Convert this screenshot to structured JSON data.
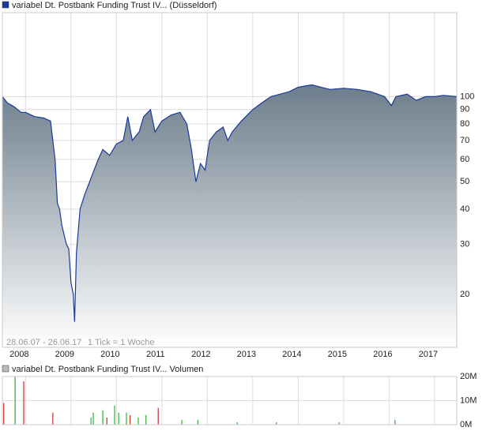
{
  "chart_data": [
    {
      "type": "line",
      "title": "variabel Dt. Postbank Funding Trust IV... (Düsseldorf)",
      "date_range": "28.06.07 - 26.06.17",
      "tick_note": "1 Tick = 1 Woche",
      "log_scale": true,
      "grid": true,
      "color": "#1a3a9a",
      "fill_color": "#6c7d8b",
      "xlim": [
        2007.49,
        2017.49
      ],
      "xticks": [
        2008,
        2009,
        2010,
        2011,
        2012,
        2013,
        2014,
        2015,
        2016,
        2017
      ],
      "ylim": [
        13,
        198
      ],
      "yticks": [
        20,
        30,
        40,
        50,
        60,
        70,
        80,
        90,
        100
      ],
      "x": [
        2007.49,
        2007.6,
        2007.75,
        2007.9,
        2008.0,
        2008.2,
        2008.4,
        2008.55,
        2008.65,
        2008.7,
        2008.75,
        2008.8,
        2008.9,
        2008.95,
        2009.0,
        2009.05,
        2009.08,
        2009.12,
        2009.2,
        2009.3,
        2009.45,
        2009.6,
        2009.7,
        2009.85,
        2010.0,
        2010.15,
        2010.25,
        2010.35,
        2010.5,
        2010.6,
        2010.75,
        2010.85,
        2011.0,
        2011.2,
        2011.4,
        2011.55,
        2011.65,
        2011.75,
        2011.85,
        2011.95,
        2012.05,
        2012.2,
        2012.35,
        2012.45,
        2012.55,
        2012.75,
        2013.0,
        2013.2,
        2013.4,
        2013.6,
        2013.8,
        2014.0,
        2014.3,
        2014.5,
        2014.7,
        2015.0,
        2015.3,
        2015.6,
        2015.9,
        2016.05,
        2016.15,
        2016.4,
        2016.6,
        2016.8,
        2017.0,
        2017.2,
        2017.49
      ],
      "values": [
        100,
        95,
        92,
        88,
        88,
        85,
        84,
        82,
        60,
        42,
        40,
        35,
        30,
        29,
        22,
        20,
        16,
        28,
        40,
        45,
        52,
        60,
        65,
        62,
        68,
        70,
        85,
        70,
        75,
        85,
        90,
        75,
        82,
        86,
        88,
        80,
        65,
        50,
        58,
        55,
        70,
        75,
        78,
        70,
        75,
        82,
        90,
        95,
        100,
        102,
        104,
        108,
        110,
        108,
        106,
        107,
        106,
        104,
        100,
        93,
        100,
        102,
        97,
        100,
        100,
        101,
        100
      ]
    },
    {
      "type": "volume",
      "title": "variabel Dt. Postbank Funding Trust IV... Volumen",
      "grid": true,
      "xlim": [
        2007.49,
        2017.49
      ],
      "xticks": [
        2008,
        2009,
        2010,
        2011,
        2012,
        2013,
        2014,
        2015,
        2016,
        2017
      ],
      "ylim": [
        0,
        20000000
      ],
      "yticks": [
        {
          "value": 0,
          "label": "0M"
        },
        {
          "value": 10000000,
          "label": "10M"
        },
        {
          "value": 20000000,
          "label": "20M"
        }
      ],
      "x": [
        2007.52,
        2007.77,
        2007.96,
        2008.6,
        2009.44,
        2009.49,
        2009.7,
        2009.79,
        2009.96,
        2010.05,
        2010.22,
        2010.3,
        2010.48,
        2010.65,
        2010.92,
        2011.44,
        2011.79,
        2012.66,
        2013.52,
        2014.9,
        2016.13
      ],
      "values": [
        9000000,
        20000000,
        18000000,
        5000000,
        3000000,
        5000000,
        6000000,
        3000000,
        8000000,
        5000000,
        5000000,
        4000000,
        3000000,
        4000000,
        7000000,
        2000000,
        2000000,
        1000000,
        1000000,
        1000000,
        2000000
      ],
      "colors": [
        "#c03030",
        "#30b030",
        "#c03030",
        "#c03030",
        "#30b030",
        "#30b030",
        "#30b030",
        "#c03030",
        "#30b030",
        "#30b030",
        "#30b030",
        "#c03030",
        "#30b030",
        "#30b030",
        "#c03030",
        "#30b030",
        "#30b030",
        "#30b030",
        "#30b030",
        "#30b030",
        "#30b030"
      ]
    }
  ]
}
